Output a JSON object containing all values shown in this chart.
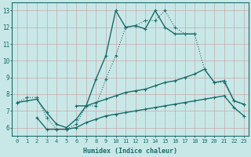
{
  "xlabel": "Humidex (Indice chaleur)",
  "background_color": "#c8e8e8",
  "grid_color": "#b8d8d8",
  "line_color": "#1a6b6b",
  "xlim": [
    -0.5,
    23.5
  ],
  "ylim": [
    5.5,
    13.5
  ],
  "xticks": [
    0,
    1,
    2,
    3,
    4,
    5,
    6,
    7,
    8,
    9,
    10,
    11,
    12,
    13,
    14,
    15,
    16,
    17,
    18,
    19,
    20,
    21,
    22,
    23
  ],
  "yticks": [
    6,
    7,
    8,
    9,
    10,
    11,
    12,
    13
  ],
  "series": [
    {
      "x": [
        6,
        7,
        8,
        9,
        10,
        11,
        12,
        13,
        14,
        15,
        16,
        17,
        18
      ],
      "y": [
        7.3,
        7.3,
        8.9,
        10.3,
        13.0,
        12.0,
        12.1,
        11.9,
        13.0,
        12.0,
        11.6,
        11.6,
        11.6
      ]
    },
    {
      "x": [
        0,
        1,
        2,
        3,
        4,
        5,
        6,
        7,
        8,
        9,
        10,
        11,
        12,
        13,
        14,
        15,
        16,
        17,
        18,
        19,
        20,
        21,
        22,
        23
      ],
      "y": [
        7.5,
        7.8,
        7.8,
        6.6,
        5.9,
        5.9,
        6.2,
        7.3,
        7.3,
        8.9,
        10.3,
        12.0,
        12.1,
        12.4,
        12.4,
        13.0,
        12.0,
        11.6,
        11.6,
        9.5,
        8.7,
        8.7,
        7.6,
        7.4
      ]
    },
    {
      "x": [
        0,
        1,
        2,
        3,
        4,
        5,
        6,
        7,
        8,
        9,
        10,
        11,
        12,
        13,
        14,
        15,
        16,
        17,
        18,
        19,
        20,
        21,
        22,
        23
      ],
      "y": [
        7.5,
        7.6,
        7.7,
        6.9,
        6.2,
        6.0,
        6.5,
        7.3,
        7.5,
        7.7,
        7.9,
        8.1,
        8.2,
        8.3,
        8.5,
        8.7,
        8.8,
        9.0,
        9.2,
        9.5,
        8.7,
        8.8,
        7.6,
        7.4
      ]
    },
    {
      "x": [
        2,
        3,
        4,
        5,
        6,
        7,
        8,
        9,
        10,
        11,
        12,
        13,
        14,
        15,
        16,
        17,
        18,
        19,
        20,
        21,
        22,
        23
      ],
      "y": [
        6.6,
        5.9,
        5.9,
        5.9,
        6.0,
        6.3,
        6.5,
        6.7,
        6.8,
        6.9,
        7.0,
        7.1,
        7.2,
        7.3,
        7.4,
        7.5,
        7.6,
        7.7,
        7.8,
        7.9,
        7.2,
        6.7
      ]
    }
  ]
}
